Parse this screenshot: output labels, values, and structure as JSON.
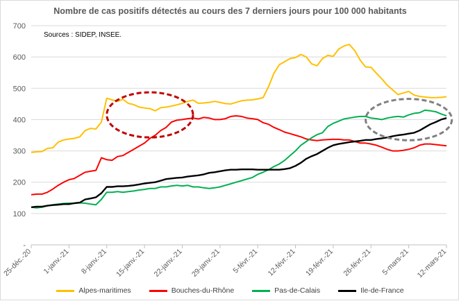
{
  "chart_data": {
    "type": "line",
    "title": "Nombre de cas  positifs détectés au cours des 7 derniers jours pour 100 000 habitants",
    "source": "Sources : SIDEP, INSEE.",
    "ylim": [
      0,
      700
    ],
    "yticks": [
      0,
      100,
      200,
      300,
      400,
      500,
      600,
      700
    ],
    "ytick_labels": [
      "-",
      "100",
      "200",
      "300",
      "400",
      "500",
      "600",
      "700"
    ],
    "x_count": 78,
    "x_tick_indices": [
      0,
      7,
      14,
      21,
      28,
      35,
      42,
      49,
      56,
      63,
      70,
      77
    ],
    "x_tick_labels": [
      "25-déc.-20",
      "1-janv.-21",
      "8-janv.-21",
      "15-janv.-21",
      "22-janv.-21",
      "29-janv.-21",
      "5-févr.-21",
      "12-févr.-21",
      "19-févr.-21",
      "26-févr.-21",
      "5-mars-21",
      "12-mars-21"
    ],
    "series": [
      {
        "name": "Alpes-maritimes",
        "color": "#FFC000",
        "values": [
          295,
          297,
          298,
          308,
          310,
          328,
          335,
          338,
          340,
          345,
          365,
          372,
          370,
          392,
          468,
          463,
          458,
          465,
          452,
          448,
          440,
          437,
          435,
          428,
          438,
          440,
          443,
          447,
          452,
          458,
          462,
          452,
          453,
          455,
          458,
          455,
          451,
          450,
          455,
          460,
          462,
          463,
          466,
          470,
          505,
          548,
          575,
          585,
          595,
          598,
          608,
          600,
          578,
          572,
          595,
          605,
          602,
          625,
          635,
          640,
          620,
          590,
          568,
          567,
          548,
          530,
          510,
          495,
          480,
          485,
          490,
          478,
          474,
          472,
          470,
          470,
          471,
          473
        ]
      },
      {
        "name": "Bouches-du-Rhône",
        "color": "#FF0000",
        "values": [
          160,
          162,
          162,
          168,
          178,
          190,
          200,
          208,
          212,
          222,
          232,
          235,
          238,
          278,
          272,
          270,
          282,
          285,
          295,
          305,
          315,
          325,
          340,
          350,
          365,
          375,
          392,
          398,
          400,
          403,
          405,
          402,
          407,
          405,
          400,
          400,
          403,
          410,
          412,
          410,
          405,
          403,
          400,
          390,
          385,
          375,
          368,
          360,
          355,
          350,
          345,
          338,
          335,
          333,
          335,
          336,
          337,
          337,
          335,
          335,
          330,
          325,
          325,
          322,
          318,
          312,
          305,
          300,
          300,
          302,
          305,
          310,
          318,
          322,
          322,
          320,
          318,
          316
        ]
      },
      {
        "name": "Pas-de-Calais",
        "color": "#00B050",
        "values": [
          120,
          118,
          120,
          125,
          128,
          130,
          132,
          133,
          133,
          134,
          133,
          130,
          128,
          145,
          168,
          168,
          170,
          168,
          170,
          172,
          175,
          177,
          180,
          180,
          185,
          185,
          188,
          190,
          188,
          190,
          185,
          185,
          182,
          180,
          182,
          185,
          190,
          195,
          200,
          205,
          210,
          215,
          225,
          232,
          240,
          250,
          258,
          270,
          285,
          300,
          318,
          330,
          342,
          352,
          358,
          378,
          388,
          395,
          402,
          405,
          408,
          410,
          410,
          405,
          403,
          400,
          405,
          408,
          410,
          408,
          415,
          420,
          422,
          430,
          428,
          425,
          418,
          412
        ]
      },
      {
        "name": "Ile-de-France",
        "color": "#000000",
        "values": [
          120,
          122,
          122,
          125,
          127,
          128,
          130,
          130,
          133,
          135,
          145,
          148,
          152,
          165,
          185,
          185,
          187,
          187,
          188,
          190,
          193,
          196,
          198,
          200,
          205,
          210,
          212,
          214,
          215,
          218,
          220,
          222,
          225,
          230,
          232,
          235,
          238,
          240,
          240,
          241,
          241,
          241,
          240,
          240,
          240,
          240,
          240,
          242,
          245,
          252,
          262,
          275,
          283,
          290,
          300,
          310,
          318,
          322,
          325,
          328,
          330,
          332,
          335,
          335,
          338,
          340,
          343,
          347,
          350,
          352,
          355,
          358,
          365,
          375,
          385,
          392,
          400,
          405
        ]
      }
    ],
    "annotations": [
      {
        "shape": "ellipse",
        "color": "#C00000",
        "cx_index": 22,
        "cy": 415,
        "rx_days": 8,
        "ry_val": 120
      },
      {
        "shape": "ellipse",
        "color": "#808080",
        "cx_index": 70,
        "cy": 400,
        "rx_days": 8,
        "ry_val": 110
      }
    ]
  }
}
